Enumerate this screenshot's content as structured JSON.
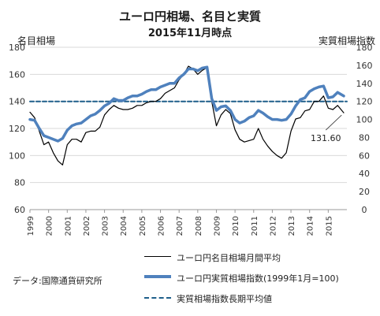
{
  "title": "ユーロ円相場、名目と実質",
  "subtitle": "2015年11月時点",
  "source": "データ:国際通貨研究所",
  "chart_data": {
    "type": "line",
    "x_unit": "year",
    "xlabel": "",
    "ylabel_left": "名目相場",
    "ylabel_right": "実質相場指数",
    "ylim_left": [
      60,
      180
    ],
    "yticks_left": [
      "60",
      "80",
      "100",
      "120",
      "140",
      "160",
      "180"
    ],
    "ylim_right": [
      0,
      180
    ],
    "yticks_right": [
      "0",
      "20",
      "40",
      "60",
      "80",
      "100",
      "120",
      "140",
      "160",
      "180"
    ],
    "xlim": [
      1999.0,
      2016.0
    ],
    "x_tick_labels": [
      "1999",
      "2000",
      "2001",
      "2002",
      "2003",
      "2004",
      "2005",
      "2006",
      "2007",
      "2008",
      "2009",
      "2010",
      "2011",
      "2012",
      "2013",
      "2014",
      "2015"
    ],
    "grid": "horizontal",
    "legend_position": "bottom",
    "annotation": {
      "text": "131.60",
      "x": 2015.8,
      "y": 131.6
    },
    "series": [
      {
        "name": "ユーロ円名目相場月間平均",
        "axis": "left",
        "color": "#000000",
        "x": [
          1999.0,
          1999.25,
          1999.5,
          1999.75,
          2000.0,
          2000.25,
          2000.5,
          2000.75,
          2001.0,
          2001.25,
          2001.5,
          2001.75,
          2002.0,
          2002.25,
          2002.5,
          2002.75,
          2003.0,
          2003.25,
          2003.5,
          2003.75,
          2004.0,
          2004.25,
          2004.5,
          2004.75,
          2005.0,
          2005.25,
          2005.5,
          2005.75,
          2006.0,
          2006.25,
          2006.5,
          2006.75,
          2007.0,
          2007.25,
          2007.5,
          2007.75,
          2008.0,
          2008.25,
          2008.5,
          2008.75,
          2009.0,
          2009.25,
          2009.5,
          2009.75,
          2010.0,
          2010.25,
          2010.5,
          2010.75,
          2011.0,
          2011.25,
          2011.5,
          2011.75,
          2012.0,
          2012.25,
          2012.5,
          2012.75,
          2013.0,
          2013.25,
          2013.5,
          2013.75,
          2014.0,
          2014.25,
          2014.5,
          2014.75,
          2015.0,
          2015.25,
          2015.5,
          2015.83
        ],
        "y": [
          132,
          128,
          118,
          108,
          110,
          102,
          96,
          93,
          108,
          112,
          112,
          110,
          117,
          118,
          118,
          121,
          130,
          134,
          137,
          135,
          134,
          134,
          135,
          137,
          137,
          139,
          140,
          140,
          142,
          146,
          148,
          150,
          156,
          160,
          166,
          164,
          160,
          163,
          165,
          140,
          122,
          130,
          134,
          131,
          119,
          112,
          110,
          111,
          112,
          120,
          112,
          107,
          103,
          100,
          98,
          102,
          118,
          127,
          128,
          133,
          134,
          140,
          140,
          144,
          135,
          134,
          137,
          131.6
        ]
      },
      {
        "name": "ユーロ円実質相場指数(1999年1月=100)",
        "axis": "right",
        "color": "#4f81bd",
        "x": [
          1999.0,
          1999.25,
          1999.5,
          1999.75,
          2000.0,
          2000.25,
          2000.5,
          2000.75,
          2001.0,
          2001.25,
          2001.5,
          2001.75,
          2002.0,
          2002.25,
          2002.5,
          2002.75,
          2003.0,
          2003.25,
          2003.5,
          2003.75,
          2004.0,
          2004.25,
          2004.5,
          2004.75,
          2005.0,
          2005.25,
          2005.5,
          2005.75,
          2006.0,
          2006.25,
          2006.5,
          2006.75,
          2007.0,
          2007.25,
          2007.5,
          2007.75,
          2008.0,
          2008.25,
          2008.5,
          2008.75,
          2009.0,
          2009.25,
          2009.5,
          2009.75,
          2010.0,
          2010.25,
          2010.5,
          2010.75,
          2011.0,
          2011.25,
          2011.5,
          2011.75,
          2012.0,
          2012.25,
          2012.5,
          2012.75,
          2013.0,
          2013.25,
          2013.5,
          2013.75,
          2014.0,
          2014.25,
          2014.5,
          2014.75,
          2015.0,
          2015.25,
          2015.5,
          2015.83
        ],
        "y": [
          100,
          99,
          90,
          82,
          80,
          78,
          76,
          79,
          88,
          93,
          95,
          96,
          100,
          104,
          106,
          110,
          115,
          118,
          123,
          121,
          121,
          124,
          126,
          126,
          128,
          131,
          133,
          133,
          136,
          138,
          140,
          140,
          146,
          150,
          156,
          156,
          154,
          157,
          158,
          123,
          110,
          114,
          115,
          110,
          100,
          96,
          98,
          102,
          104,
          110,
          107,
          103,
          100,
          100,
          99,
          100,
          106,
          115,
          122,
          124,
          131,
          134,
          136,
          137,
          124,
          125,
          130,
          126
        ]
      },
      {
        "name": "実質相場指数長期平均値",
        "axis": "right",
        "color": "#1f5f8b",
        "style": "dashed",
        "x": [
          1999.0,
          2016.0
        ],
        "y": [
          120,
          120
        ]
      }
    ]
  }
}
